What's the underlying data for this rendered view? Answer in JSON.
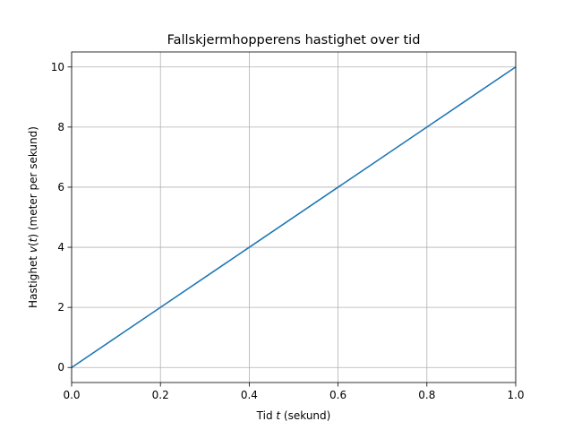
{
  "chart_data": {
    "type": "line",
    "title": "Fallskjermhopperens hastighet over tid",
    "xlabel_parts": [
      "Tid ",
      "t",
      " (sekund)"
    ],
    "ylabel_parts": [
      "Hastighet ",
      "v",
      "(",
      "t",
      ") (meter per sekund)"
    ],
    "xlim": [
      0,
      1
    ],
    "ylim": [
      -0.5,
      10.5
    ],
    "xticks": [
      0,
      0.2,
      0.4,
      0.6,
      0.8,
      1
    ],
    "xtick_labels": [
      "0.0",
      "0.2",
      "0.4",
      "0.6",
      "0.8",
      "1.0"
    ],
    "yticks": [
      0,
      2,
      4,
      6,
      8,
      10
    ],
    "ytick_labels": [
      "0",
      "2",
      "4",
      "6",
      "8",
      "10"
    ],
    "grid": true,
    "series": [
      {
        "color": "#1f77b4",
        "x": [
          0,
          0.2,
          0.4,
          0.6,
          0.8,
          1.0
        ],
        "y": [
          0,
          2,
          4,
          6,
          8,
          10
        ]
      }
    ]
  }
}
